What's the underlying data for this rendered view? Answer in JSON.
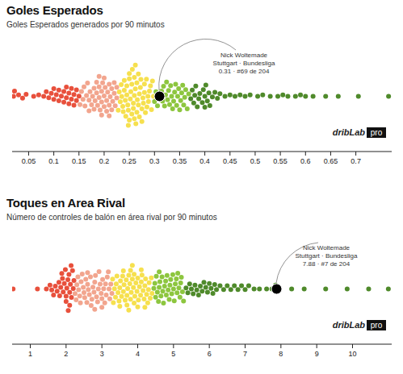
{
  "chart_data": [
    {
      "type": "beeswarm",
      "title": "Goles Esperados",
      "subtitle": "Goles Esperados generados por 90 minutos",
      "xlim": [
        0.018,
        0.772
      ],
      "xticks": [
        0.05,
        0.1,
        0.15,
        0.2,
        0.25,
        0.3,
        0.35,
        0.4,
        0.45,
        0.5,
        0.55,
        0.6,
        0.65,
        0.7
      ],
      "series": [
        {
          "color": "#e8503c",
          "values": [
            0.02,
            0.022,
            0.03,
            0.038,
            0.045,
            0.06,
            0.07,
            0.08,
            0.085,
            0.09,
            0.095,
            0.1,
            0.1,
            0.105,
            0.11,
            0.11,
            0.115,
            0.12,
            0.12,
            0.125,
            0.125,
            0.13,
            0.13,
            0.135,
            0.135,
            0.14,
            0.14,
            0.145,
            0.145,
            0.15
          ]
        },
        {
          "color": "#f2a58e",
          "values": [
            0.152,
            0.155,
            0.158,
            0.16,
            0.162,
            0.165,
            0.167,
            0.17,
            0.172,
            0.175,
            0.177,
            0.18,
            0.182,
            0.185,
            0.187,
            0.19,
            0.19,
            0.192,
            0.195,
            0.195,
            0.197,
            0.2,
            0.2,
            0.202,
            0.205,
            0.205,
            0.207,
            0.21,
            0.21,
            0.212,
            0.215,
            0.215,
            0.217,
            0.22,
            0.22,
            0.222,
            0.225,
            0.225,
            0.18,
            0.185,
            0.2,
            0.21,
            0.195,
            0.17,
            0.19
          ]
        },
        {
          "color": "#f6e04e",
          "values": [
            0.228,
            0.23,
            0.232,
            0.234,
            0.235,
            0.237,
            0.238,
            0.24,
            0.24,
            0.242,
            0.243,
            0.245,
            0.245,
            0.247,
            0.248,
            0.25,
            0.25,
            0.25,
            0.252,
            0.253,
            0.255,
            0.255,
            0.256,
            0.258,
            0.258,
            0.26,
            0.26,
            0.26,
            0.262,
            0.263,
            0.265,
            0.265,
            0.266,
            0.268,
            0.268,
            0.27,
            0.27,
            0.272,
            0.273,
            0.275,
            0.275,
            0.277,
            0.278,
            0.28,
            0.28,
            0.282,
            0.284,
            0.285,
            0.287,
            0.288,
            0.29,
            0.292,
            0.294,
            0.296,
            0.298,
            0.248,
            0.262
          ]
        },
        {
          "color": "#8dc63f",
          "values": [
            0.3,
            0.303,
            0.306,
            0.312,
            0.314,
            0.316,
            0.318,
            0.32,
            0.322,
            0.324,
            0.326,
            0.328,
            0.33,
            0.332,
            0.334,
            0.336,
            0.338,
            0.34,
            0.342,
            0.344,
            0.346,
            0.348,
            0.35,
            0.352,
            0.354,
            0.356,
            0.358,
            0.36,
            0.362,
            0.365,
            0.368
          ]
        },
        {
          "color": "#4f8a2b",
          "values": [
            0.372,
            0.375,
            0.378,
            0.38,
            0.382,
            0.385,
            0.388,
            0.39,
            0.395,
            0.397,
            0.4,
            0.4,
            0.402,
            0.405,
            0.408,
            0.41,
            0.415,
            0.42,
            0.425,
            0.43,
            0.44,
            0.45,
            0.46,
            0.47,
            0.48,
            0.49,
            0.505,
            0.515,
            0.53,
            0.545,
            0.555,
            0.565,
            0.58,
            0.59,
            0.6,
            0.615,
            0.64,
            0.665,
            0.705,
            0.765
          ]
        }
      ],
      "highlight": {
        "name": "Nick Woltemade",
        "team": "Stuttgart · Bundesliga",
        "value": 0.31,
        "label": "0.31 · #69 de 204"
      },
      "logo": [
        "dribLab",
        "pro"
      ]
    },
    {
      "type": "beeswarm",
      "title": "Toques en Area Rival",
      "subtitle": "Número de controles de balón en área rival por 90 minutos",
      "xlim": [
        0.504,
        11.105
      ],
      "xticks": [
        1,
        2,
        3,
        4,
        5,
        6,
        7,
        8,
        9,
        10
      ],
      "series": [
        {
          "color": "#e8503c",
          "values": [
            0.52,
            1.2,
            1.45,
            1.55,
            1.6,
            1.65,
            1.7,
            1.75,
            1.8,
            1.82,
            1.85,
            1.9,
            1.92,
            1.95,
            2.0,
            2.0,
            2.02,
            2.05,
            2.08,
            2.1,
            2.1,
            2.12,
            2.15,
            2.18,
            2.2,
            2.22,
            1.88,
            1.98,
            2.06,
            2.14
          ]
        },
        {
          "color": "#f2a58e",
          "values": [
            2.25,
            2.28,
            2.3,
            2.33,
            2.35,
            2.38,
            2.4,
            2.42,
            2.45,
            2.48,
            2.5,
            2.52,
            2.55,
            2.58,
            2.6,
            2.62,
            2.65,
            2.68,
            2.7,
            2.72,
            2.75,
            2.78,
            2.8,
            2.82,
            2.85,
            2.88,
            2.9,
            2.92,
            2.95,
            2.98,
            3.0,
            3.02,
            3.05,
            3.08,
            3.1,
            3.12,
            3.15,
            3.18,
            3.2,
            3.22,
            3.25,
            3.28,
            2.6,
            2.8,
            3.0
          ]
        },
        {
          "color": "#f6e04e",
          "values": [
            3.3,
            3.32,
            3.35,
            3.38,
            3.4,
            3.42,
            3.45,
            3.48,
            3.5,
            3.52,
            3.55,
            3.58,
            3.6,
            3.62,
            3.65,
            3.68,
            3.7,
            3.72,
            3.75,
            3.78,
            3.8,
            3.82,
            3.85,
            3.88,
            3.9,
            3.92,
            3.95,
            3.98,
            4.0,
            4.02,
            4.05,
            4.08,
            4.1,
            4.12,
            4.15,
            4.18,
            4.2,
            4.22,
            4.25,
            4.28,
            4.3,
            4.32,
            4.35,
            4.38,
            4.4,
            3.5,
            3.6,
            3.7,
            3.8,
            3.9,
            4.0,
            4.1,
            4.2,
            3.75,
            3.85
          ]
        },
        {
          "color": "#8dc63f",
          "values": [
            4.45,
            4.48,
            4.5,
            4.52,
            4.55,
            4.58,
            4.6,
            4.62,
            4.65,
            4.68,
            4.7,
            4.72,
            4.75,
            4.78,
            4.8,
            4.82,
            4.85,
            4.88,
            4.9,
            4.92,
            4.95,
            4.98,
            5.0,
            5.02,
            5.05,
            5.08,
            5.1,
            5.12,
            5.15,
            5.18,
            5.2,
            5.22,
            5.25,
            5.28,
            4.6
          ]
        },
        {
          "color": "#4f8a2b",
          "values": [
            5.35,
            5.4,
            5.45,
            5.5,
            5.55,
            5.6,
            5.65,
            5.7,
            5.75,
            5.8,
            5.85,
            5.9,
            5.95,
            6.0,
            6.05,
            6.1,
            6.15,
            6.2,
            6.3,
            6.4,
            6.5,
            6.6,
            6.7,
            6.8,
            6.9,
            7.0,
            7.1,
            7.25,
            7.4,
            7.6,
            7.75,
            7.85,
            8.3,
            8.65,
            9.25,
            9.85,
            10.45,
            11.0
          ]
        }
      ],
      "highlight": {
        "name": "Nick Woltemade",
        "team": "Stuttgart · Bundesliga",
        "value": 7.88,
        "label": "7.88 · #7 de 204"
      },
      "logo": [
        "dribLab",
        "pro"
      ]
    }
  ]
}
